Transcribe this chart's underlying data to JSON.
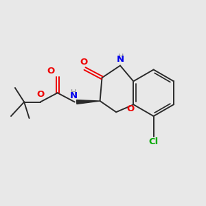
{
  "bg_color": "#e8e8e8",
  "bond_color": "#2a2a2a",
  "bond_width": 1.4,
  "N_color": "#0000ee",
  "O_color": "#ee0000",
  "Cl_color": "#00aa00",
  "H_color": "#888888",
  "figsize": [
    3.0,
    3.0
  ],
  "dpi": 100,
  "xlim": [
    0,
    10
  ],
  "ylim": [
    0,
    10
  ]
}
